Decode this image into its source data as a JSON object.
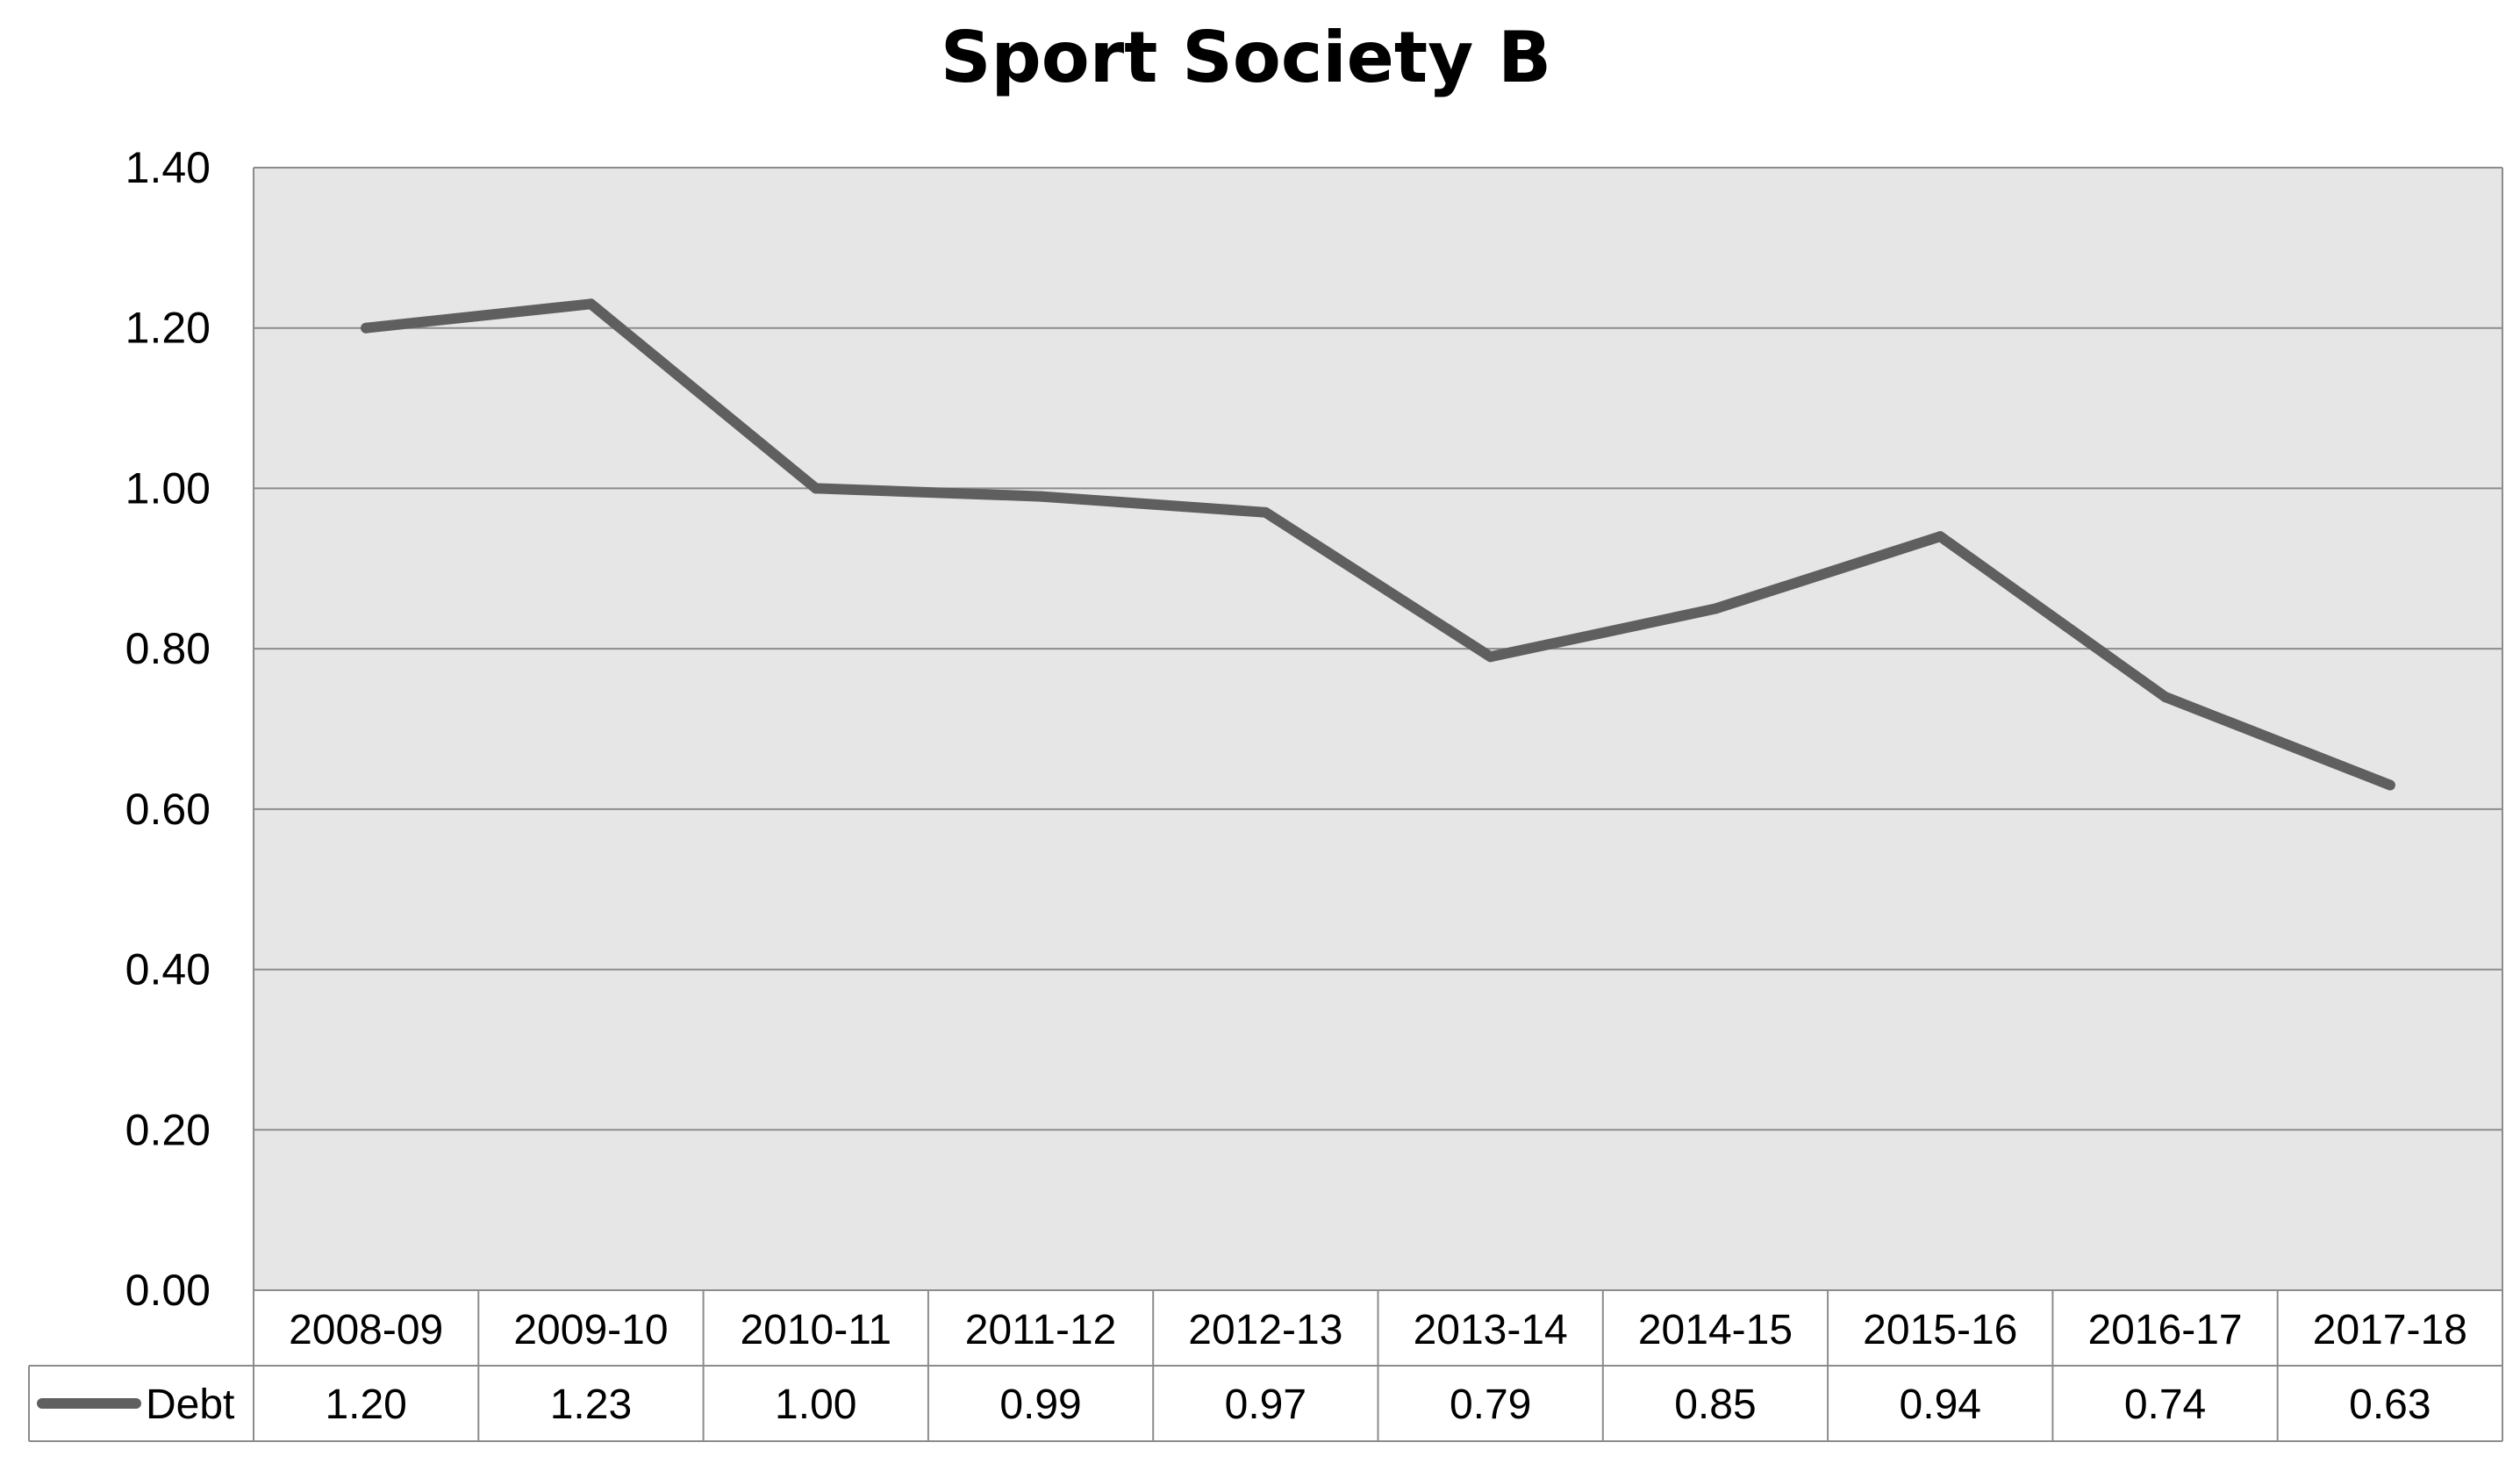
{
  "chart_data": {
    "type": "line",
    "title": "Sport Society B",
    "categories": [
      "2008-09",
      "2009-10",
      "2010-11",
      "2011-12",
      "2012-13",
      "2013-14",
      "2014-15",
      "2015-16",
      "2016-17",
      "2017-18"
    ],
    "series": [
      {
        "name": "Debt",
        "values": [
          1.2,
          1.23,
          1.0,
          0.99,
          0.97,
          0.79,
          0.85,
          0.94,
          0.74,
          0.63
        ],
        "labels": [
          "1.20",
          "1.23",
          "1.00",
          "0.99",
          "0.97",
          "0.79",
          "0.85",
          "0.94",
          "0.74",
          "0.63"
        ],
        "color": "#5f5f5f"
      }
    ],
    "yticks": [
      "0.00",
      "0.20",
      "0.40",
      "0.60",
      "0.80",
      "1.00",
      "1.20",
      "1.40"
    ],
    "ylim": [
      0,
      1.4
    ],
    "grid": true,
    "plot_background": "#e6e6e6",
    "gridline_color": "#8c8c8c",
    "legend_placement": "data-table"
  }
}
